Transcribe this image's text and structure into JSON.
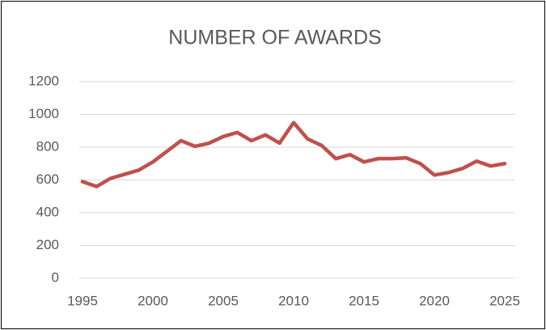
{
  "chart_data": {
    "type": "line",
    "title": "NUMBER OF AWARDS",
    "x": [
      1995,
      1996,
      1997,
      1998,
      1999,
      2000,
      2001,
      2002,
      2003,
      2004,
      2005,
      2006,
      2007,
      2008,
      2009,
      2010,
      2011,
      2012,
      2013,
      2014,
      2015,
      2016,
      2017,
      2018,
      2019,
      2020,
      2021,
      2022,
      2023,
      2024,
      2025
    ],
    "series": [
      {
        "name": "Number of awards",
        "color": "#c0504d",
        "values": [
          590,
          560,
          610,
          635,
          660,
          710,
          775,
          840,
          805,
          825,
          865,
          890,
          840,
          875,
          825,
          950,
          850,
          810,
          730,
          755,
          710,
          730,
          730,
          735,
          700,
          630,
          645,
          670,
          715,
          685,
          700
        ]
      }
    ],
    "xlim": [
      1995,
      2025
    ],
    "xticks": [
      1995,
      2000,
      2005,
      2010,
      2015,
      2020,
      2025
    ],
    "ylim": [
      0,
      1200
    ],
    "yticks": [
      0,
      200,
      400,
      600,
      800,
      1000,
      1200
    ],
    "grid": true
  }
}
